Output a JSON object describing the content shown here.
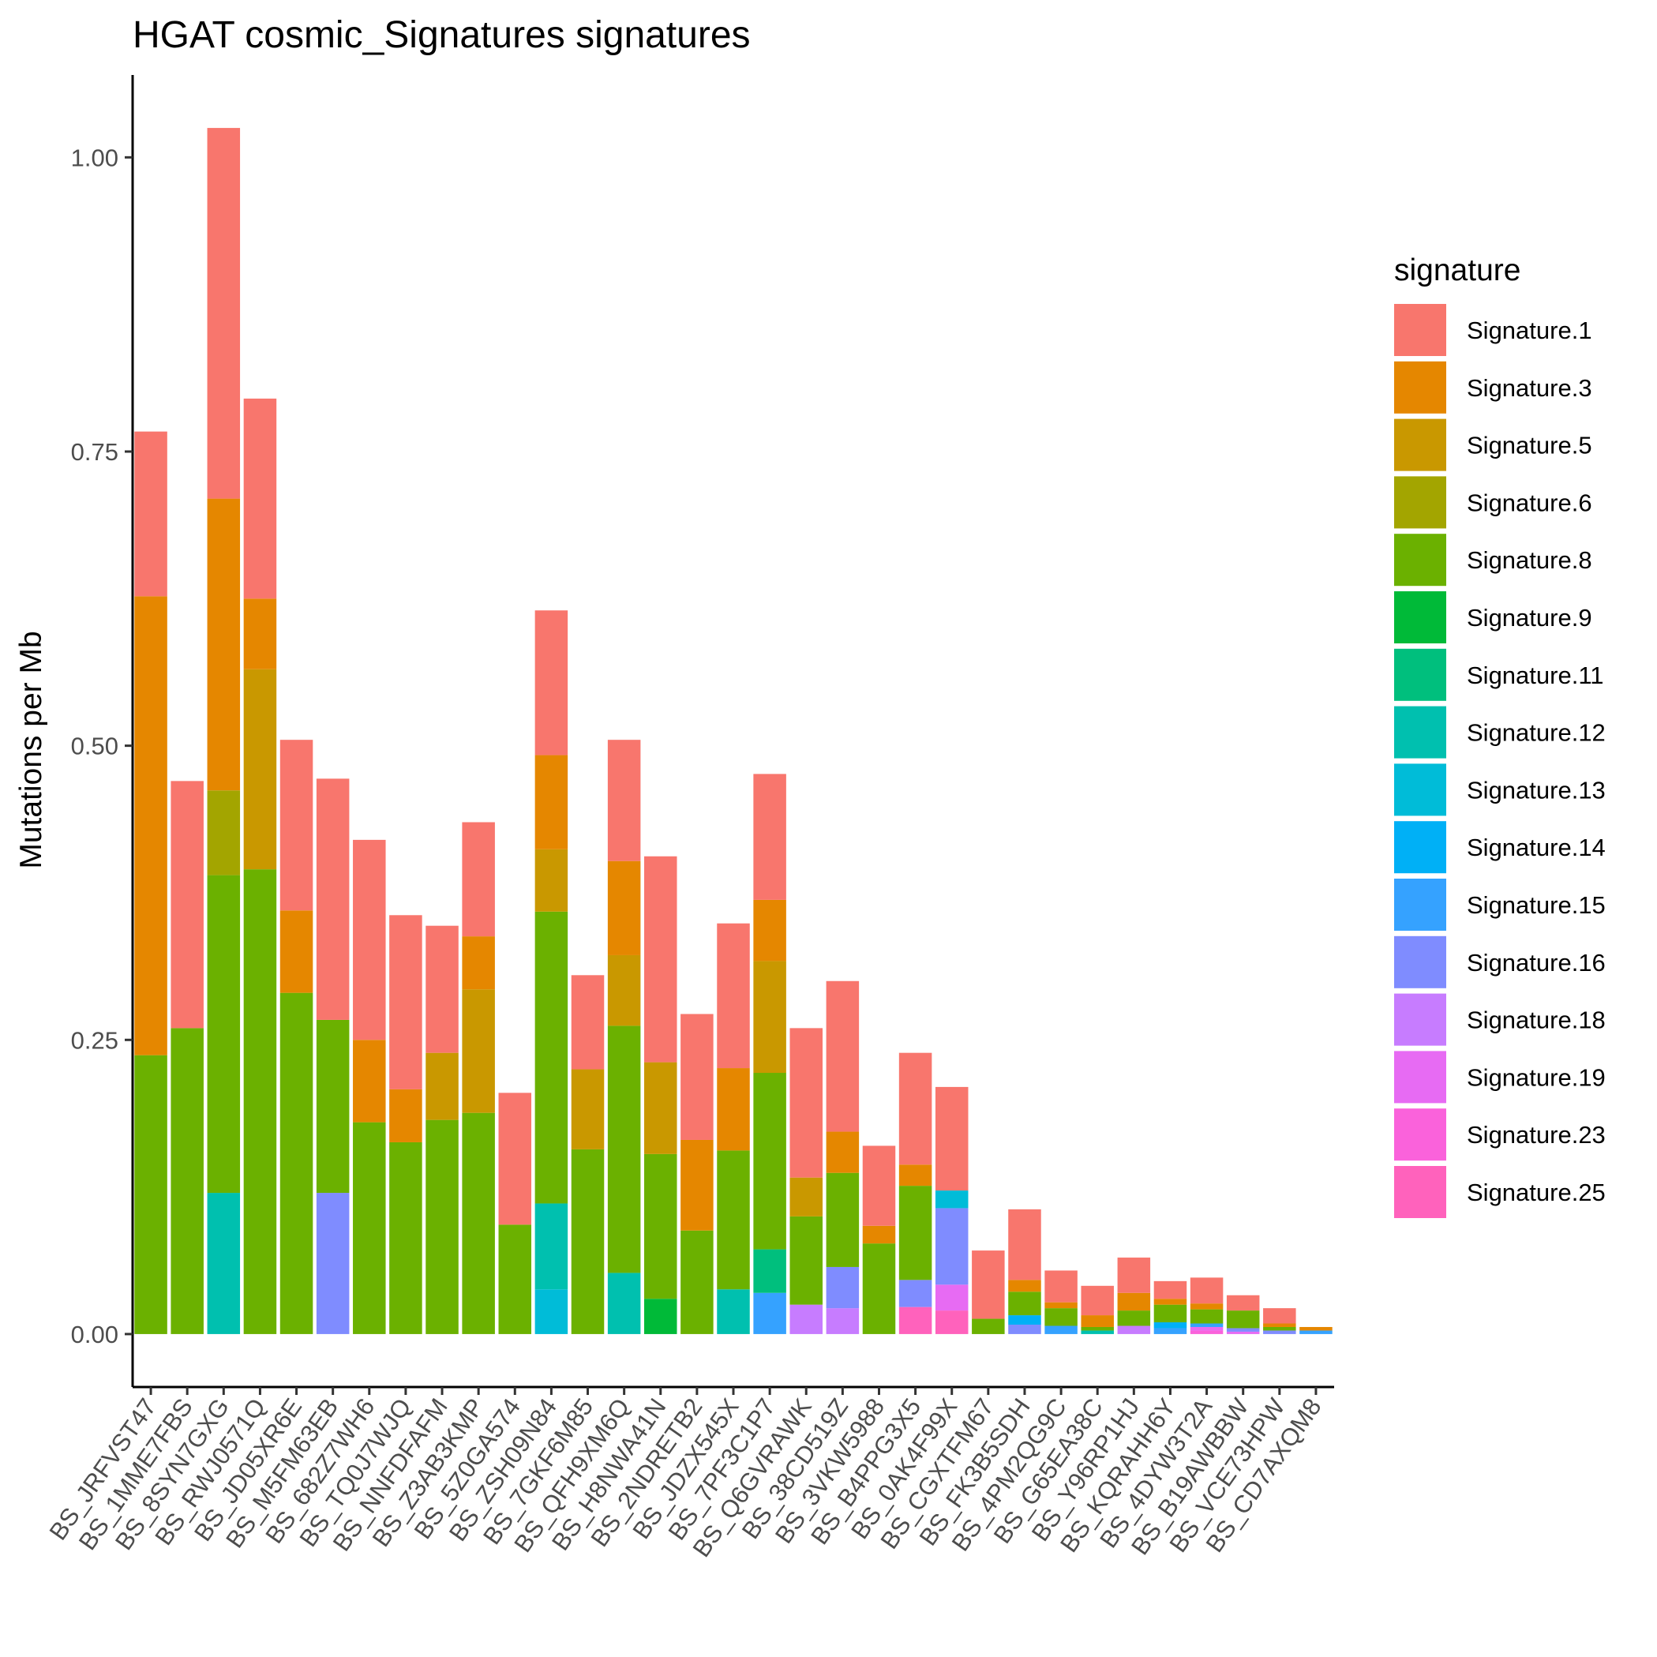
{
  "chart_data": {
    "type": "bar",
    "stacked": true,
    "title": "HGAT cosmic_Signatures signatures",
    "xlabel": "",
    "ylabel": "Mutations per Mb",
    "ylim": [
      -0.045,
      1.07
    ],
    "yticks": [
      0.0,
      0.25,
      0.5,
      0.75,
      1.0
    ],
    "ytick_labels": [
      "0.00",
      "0.25",
      "0.50",
      "0.75",
      "1.00"
    ],
    "grid": false,
    "legend": {
      "title": "signature",
      "position": "right"
    },
    "categories": [
      "BS_JRFVST47",
      "BS_1MME7FBS",
      "BS_8SYN7GXG",
      "BS_RWJ0571Q",
      "BS_JD05XR6E",
      "BS_M5FM63EB",
      "BS_682Z7WH6",
      "BS_TQ0J7WJQ",
      "BS_NNFDFAFM",
      "BS_Z3AB3KMP",
      "BS_5Z0GA574",
      "BS_ZSH09N84",
      "BS_7GKF6M85",
      "BS_QFH9XM6Q",
      "BS_H8NWA41N",
      "BS_2NDRETB2",
      "BS_JDZX545X",
      "BS_7PF3C1P7",
      "BS_Q6GVRAWK",
      "BS_38CD519Z",
      "BS_3VKW5988",
      "BS_B4PPG3X5",
      "BS_0AK4F99X",
      "BS_CGXTFM67",
      "BS_FK3B5SDH",
      "BS_4PM2QG9C",
      "BS_G65EA38C",
      "BS_Y96RP1HJ",
      "BS_KQRAHH6Y",
      "BS_4DYW3T2A",
      "BS_B19AWBBW",
      "BS_VCE73HPW",
      "BS_CD7AXQM8"
    ],
    "series": [
      {
        "name": "Signature.1",
        "color": "#F8766D",
        "values": [
          0.14,
          0.21,
          0.315,
          0.17,
          0.145,
          0.205,
          0.17,
          0.148,
          0.108,
          0.097,
          0.112,
          0.123,
          0.08,
          0.103,
          0.175,
          0.107,
          0.123,
          0.107,
          0.127,
          0.128,
          0.068,
          0.095,
          0.088,
          0.058,
          0.06,
          0.027,
          0.025,
          0.03,
          0.015,
          0.022,
          0.013,
          0.013,
          0.0
        ]
      },
      {
        "name": "Signature.3",
        "color": "#E58700",
        "values": [
          0.39,
          0.0,
          0.248,
          0.06,
          0.07,
          0.0,
          0.07,
          0.045,
          0.0,
          0.045,
          0.0,
          0.08,
          0.0,
          0.08,
          0.0,
          0.077,
          0.07,
          0.052,
          0.0,
          0.035,
          0.015,
          0.018,
          0.0,
          0.0,
          0.01,
          0.005,
          0.01,
          0.015,
          0.005,
          0.005,
          0.0,
          0.003,
          0.003
        ]
      },
      {
        "name": "Signature.5",
        "color": "#C99800",
        "values": [
          0.0,
          0.0,
          0.0,
          0.17,
          0.0,
          0.0,
          0.0,
          0.0,
          0.057,
          0.105,
          0.0,
          0.053,
          0.068,
          0.06,
          0.078,
          0.0,
          0.0,
          0.095,
          0.033,
          0.0,
          0.0,
          0.0,
          0.0,
          0.0,
          0.0,
          0.0,
          0.0,
          0.0,
          0.0,
          0.0,
          0.0,
          0.0,
          0.0
        ]
      },
      {
        "name": "Signature.6",
        "color": "#A3A500",
        "values": [
          0.0,
          0.0,
          0.072,
          0.0,
          0.0,
          0.0,
          0.0,
          0.0,
          0.0,
          0.0,
          0.0,
          0.0,
          0.0,
          0.0,
          0.0,
          0.0,
          0.0,
          0.0,
          0.0,
          0.0,
          0.0,
          0.0,
          0.0,
          0.0,
          0.0,
          0.0,
          0.0,
          0.0,
          0.0,
          0.0,
          0.0,
          0.0,
          0.0
        ]
      },
      {
        "name": "Signature.8",
        "color": "#6BB100",
        "values": [
          0.237,
          0.26,
          0.27,
          0.395,
          0.29,
          0.147,
          0.18,
          0.163,
          0.182,
          0.188,
          0.093,
          0.248,
          0.157,
          0.21,
          0.123,
          0.088,
          0.118,
          0.15,
          0.075,
          0.08,
          0.077,
          0.08,
          0.0,
          0.013,
          0.02,
          0.015,
          0.003,
          0.013,
          0.015,
          0.012,
          0.015,
          0.003,
          0.0
        ]
      },
      {
        "name": "Signature.9",
        "color": "#00BA38",
        "values": [
          0.0,
          0.0,
          0.0,
          0.0,
          0.0,
          0.0,
          0.0,
          0.0,
          0.0,
          0.0,
          0.0,
          0.0,
          0.0,
          0.0,
          0.03,
          0.0,
          0.0,
          0.0,
          0.0,
          0.0,
          0.0,
          0.0,
          0.0,
          0.0,
          0.0,
          0.0,
          0.0,
          0.0,
          0.0,
          0.0,
          0.0,
          0.0,
          0.0
        ]
      },
      {
        "name": "Signature.11",
        "color": "#00BF7D",
        "values": [
          0.0,
          0.0,
          0.0,
          0.0,
          0.0,
          0.0,
          0.0,
          0.0,
          0.0,
          0.0,
          0.0,
          0.0,
          0.0,
          0.0,
          0.0,
          0.0,
          0.0,
          0.037,
          0.0,
          0.0,
          0.0,
          0.0,
          0.0,
          0.0,
          0.0,
          0.0,
          0.0,
          0.0,
          0.0,
          0.0,
          0.0,
          0.0,
          0.0
        ]
      },
      {
        "name": "Signature.12",
        "color": "#00C0AF",
        "values": [
          0.0,
          0.0,
          0.12,
          0.0,
          0.0,
          0.0,
          0.0,
          0.0,
          0.0,
          0.0,
          0.0,
          0.073,
          0.0,
          0.052,
          0.0,
          0.0,
          0.038,
          0.0,
          0.0,
          0.0,
          0.0,
          0.0,
          0.0,
          0.0,
          0.0,
          0.0,
          0.003,
          0.0,
          0.0,
          0.0,
          0.0,
          0.0,
          0.0
        ]
      },
      {
        "name": "Signature.13",
        "color": "#00BCD8",
        "values": [
          0.0,
          0.0,
          0.0,
          0.0,
          0.0,
          0.0,
          0.0,
          0.0,
          0.0,
          0.0,
          0.0,
          0.038,
          0.0,
          0.0,
          0.0,
          0.0,
          0.0,
          0.0,
          0.0,
          0.0,
          0.0,
          0.0,
          0.015,
          0.0,
          0.0,
          0.0,
          0.0,
          0.0,
          0.0,
          0.0,
          0.0,
          0.0,
          0.0
        ]
      },
      {
        "name": "Signature.14",
        "color": "#00B0F6",
        "values": [
          0.0,
          0.0,
          0.0,
          0.0,
          0.0,
          0.0,
          0.0,
          0.0,
          0.0,
          0.0,
          0.0,
          0.0,
          0.0,
          0.0,
          0.0,
          0.0,
          0.0,
          0.0,
          0.0,
          0.0,
          0.0,
          0.0,
          0.0,
          0.0,
          0.008,
          0.0,
          0.0,
          0.0,
          0.005,
          0.0,
          0.0,
          0.0,
          0.0
        ]
      },
      {
        "name": "Signature.15",
        "color": "#35A2FF",
        "values": [
          0.0,
          0.0,
          0.0,
          0.0,
          0.0,
          0.0,
          0.0,
          0.0,
          0.0,
          0.0,
          0.0,
          0.0,
          0.0,
          0.0,
          0.0,
          0.0,
          0.0,
          0.035,
          0.0,
          0.0,
          0.0,
          0.0,
          0.0,
          0.0,
          0.0,
          0.007,
          0.0,
          0.0,
          0.005,
          0.003,
          0.0,
          0.0,
          0.003
        ]
      },
      {
        "name": "Signature.16",
        "color": "#7F8CFF",
        "values": [
          0.0,
          0.0,
          0.0,
          0.0,
          0.0,
          0.12,
          0.0,
          0.0,
          0.0,
          0.0,
          0.0,
          0.0,
          0.0,
          0.0,
          0.0,
          0.0,
          0.0,
          0.0,
          0.0,
          0.035,
          0.0,
          0.023,
          0.065,
          0.0,
          0.008,
          0.0,
          0.0,
          0.0,
          0.0,
          0.0,
          0.003,
          0.003,
          0.0
        ]
      },
      {
        "name": "Signature.18",
        "color": "#C77CFF",
        "values": [
          0.0,
          0.0,
          0.0,
          0.0,
          0.0,
          0.0,
          0.0,
          0.0,
          0.0,
          0.0,
          0.0,
          0.0,
          0.0,
          0.0,
          0.0,
          0.0,
          0.0,
          0.0,
          0.025,
          0.022,
          0.0,
          0.0,
          0.0,
          0.0,
          0.0,
          0.0,
          0.0,
          0.007,
          0.0,
          0.0,
          0.0,
          0.0,
          0.0
        ]
      },
      {
        "name": "Signature.19",
        "color": "#E76BF3",
        "values": [
          0.0,
          0.0,
          0.0,
          0.0,
          0.0,
          0.0,
          0.0,
          0.0,
          0.0,
          0.0,
          0.0,
          0.0,
          0.0,
          0.0,
          0.0,
          0.0,
          0.0,
          0.0,
          0.0,
          0.0,
          0.0,
          0.0,
          0.022,
          0.0,
          0.0,
          0.0,
          0.0,
          0.0,
          0.0,
          0.003,
          0.002,
          0.0,
          0.0
        ]
      },
      {
        "name": "Signature.23",
        "color": "#FA62DB",
        "values": [
          0.0,
          0.0,
          0.0,
          0.0,
          0.0,
          0.0,
          0.0,
          0.0,
          0.0,
          0.0,
          0.0,
          0.0,
          0.0,
          0.0,
          0.0,
          0.0,
          0.0,
          0.0,
          0.0,
          0.0,
          0.0,
          0.0,
          0.0,
          0.0,
          0.0,
          0.0,
          0.0,
          0.0,
          0.0,
          0.003,
          0.0,
          0.0,
          0.0
        ]
      },
      {
        "name": "Signature.25",
        "color": "#FF62BC",
        "values": [
          0.0,
          0.0,
          0.0,
          0.0,
          0.0,
          0.0,
          0.0,
          0.0,
          0.0,
          0.0,
          0.0,
          0.0,
          0.0,
          0.0,
          0.0,
          0.0,
          0.0,
          0.0,
          0.0,
          0.0,
          0.0,
          0.023,
          0.02,
          0.0,
          0.0,
          0.0,
          0.0,
          0.0,
          0.0,
          0.0,
          0.0,
          0.0,
          0.0
        ]
      }
    ]
  }
}
